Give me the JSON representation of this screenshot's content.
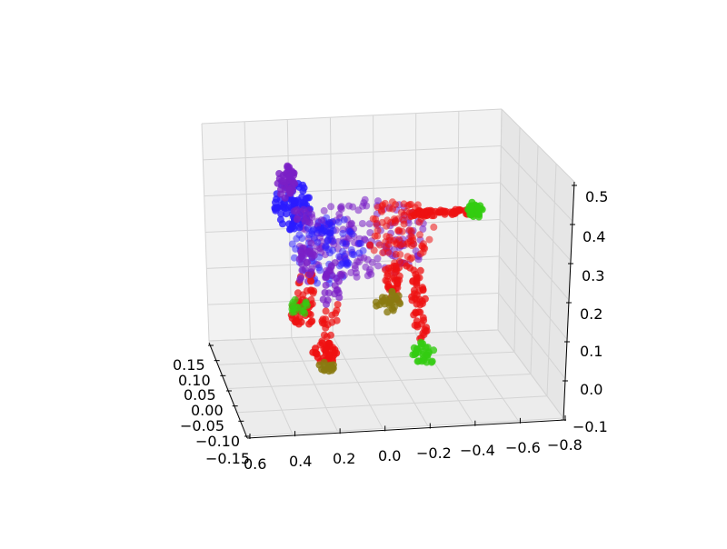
{
  "chart_data": {
    "type": "scatter",
    "projection": "3d",
    "title": "",
    "xlabel": "",
    "ylabel": "",
    "zlabel": "",
    "grid": true,
    "legend": "none",
    "axes": {
      "x": {
        "ticks": [
          "0.6",
          "0.4",
          "0.2",
          "0.0",
          "−0.2",
          "−0.4",
          "−0.6",
          "−0.8"
        ],
        "range": [
          0.6,
          -0.8
        ]
      },
      "y": {
        "ticks": [
          "0.15",
          "0.10",
          "0.05",
          "0.00",
          "−0.05",
          "−0.10",
          "−0.15"
        ],
        "range": [
          0.15,
          -0.15
        ]
      },
      "z": {
        "ticks": [
          "0.5",
          "0.4",
          "0.3",
          "0.2",
          "0.1",
          "0.0",
          "−0.1"
        ],
        "range": [
          -0.1,
          0.5
        ]
      }
    },
    "color_scheme": {
      "blue": "#2a1cff",
      "purple": "#7a1fc6",
      "red": "#ee1111",
      "olive": "#8a7a10",
      "green": "#33cc11"
    },
    "point_groups": [
      {
        "part": "head",
        "color": "blue",
        "x": [
          0.3,
          0.45
        ],
        "z": [
          0.4,
          0.5
        ]
      },
      {
        "part": "neck-body-front",
        "color": "purple",
        "x": [
          0.1,
          0.3
        ],
        "z": [
          0.25,
          0.45
        ]
      },
      {
        "part": "body",
        "color": "purple",
        "x": [
          -0.1,
          0.15
        ],
        "z": [
          0.25,
          0.45
        ]
      },
      {
        "part": "body-rear",
        "color": "red",
        "x": [
          -0.2,
          0.0
        ],
        "z": [
          0.25,
          0.45
        ]
      },
      {
        "part": "tail",
        "color": "red",
        "x": [
          -0.45,
          -0.2
        ],
        "z": [
          0.45,
          0.48
        ]
      },
      {
        "part": "tail-tip",
        "color": "green",
        "x": [
          -0.5,
          -0.45
        ],
        "z": [
          0.45,
          0.5
        ]
      },
      {
        "part": "front-leg-left",
        "color": "red",
        "x": [
          0.2,
          0.3
        ],
        "z": [
          0.05,
          0.3
        ]
      },
      {
        "part": "front-leg-right",
        "color": "red",
        "x": [
          0.3,
          0.4
        ],
        "z": [
          0.12,
          0.3
        ]
      },
      {
        "part": "rear-leg-left",
        "color": "red",
        "x": [
          -0.15,
          -0.05
        ],
        "z": [
          0.08,
          0.3
        ]
      },
      {
        "part": "rear-leg-right",
        "color": "red",
        "x": [
          -0.3,
          -0.2
        ],
        "z": [
          0.0,
          0.3
        ]
      },
      {
        "part": "paws",
        "color": "green",
        "x": [
          -0.3,
          0.4
        ],
        "z": [
          0.0,
          0.15
        ]
      }
    ]
  }
}
